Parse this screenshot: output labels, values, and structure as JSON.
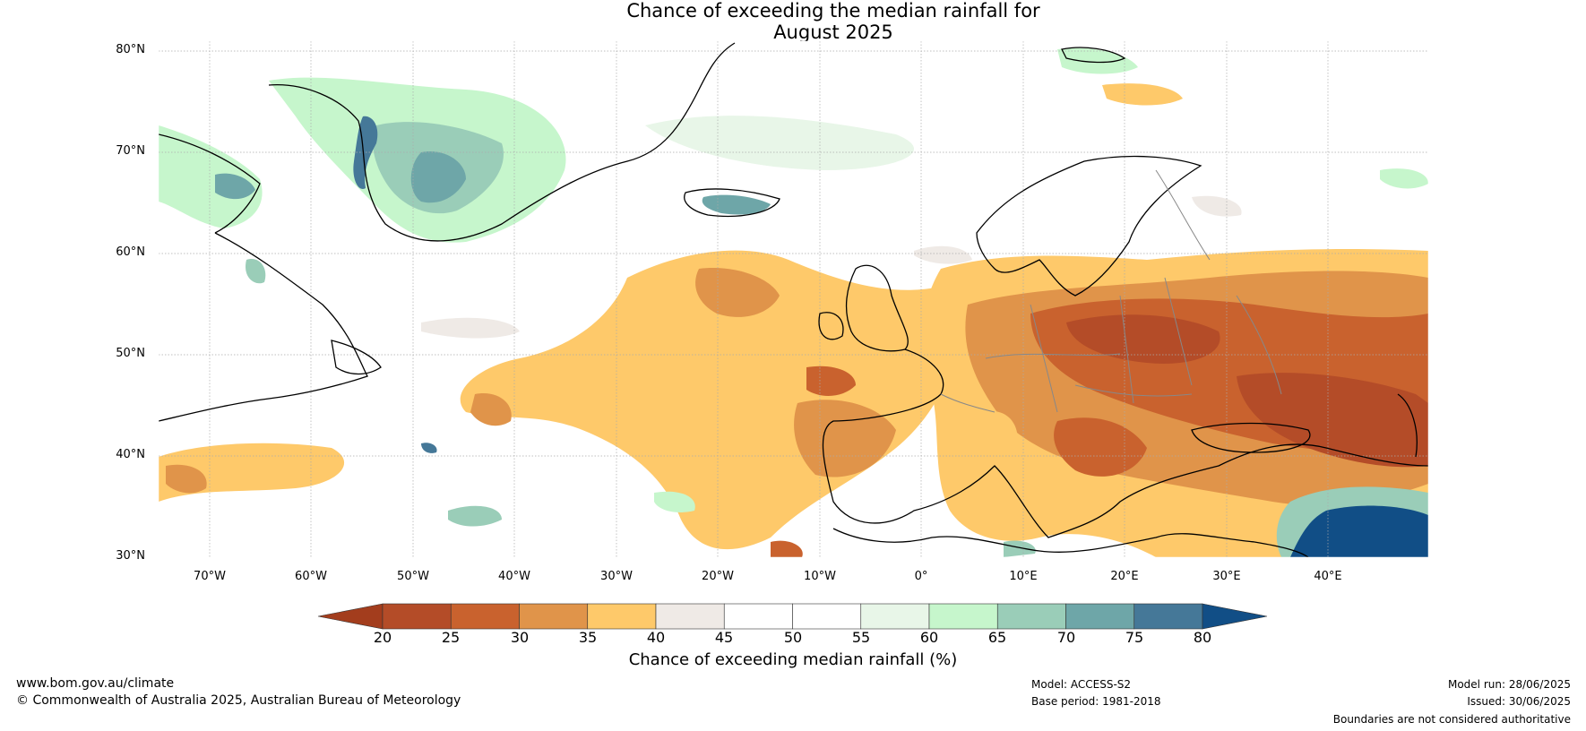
{
  "title": {
    "line1": "Chance of exceeding the median rainfall for",
    "line2": "August 2025"
  },
  "map": {
    "lat_labels": [
      "80°N",
      "70°N",
      "60°N",
      "50°N",
      "40°N",
      "30°N"
    ],
    "lon_labels": [
      "70°W",
      "60°W",
      "50°W",
      "40°W",
      "30°W",
      "20°W",
      "10°W",
      "0°",
      "10°E",
      "20°E",
      "30°E",
      "40°E"
    ],
    "extent": {
      "lon_min": -75,
      "lon_max": 50,
      "lat_min": 30,
      "lat_max": 81
    },
    "gridlines": true,
    "colors": {
      "very_dry": "#a33d1d",
      "dry_2": "#b44c28",
      "dry_3": "#c9622e",
      "dry_4": "#e0944a",
      "dry_5": "#fec96a",
      "neutral_low": "#efeae6",
      "neutral": "#ffffff",
      "wet_1": "#e8f6e8",
      "wet_2": "#c6f6cc",
      "wet_3": "#9acdb8",
      "wet_4": "#6ea6a8",
      "wet_5": "#457898",
      "very_wet": "#114e86"
    }
  },
  "colorbar": {
    "ticks": [
      "20",
      "25",
      "30",
      "35",
      "40",
      "45",
      "50",
      "55",
      "60",
      "65",
      "70",
      "75",
      "80"
    ],
    "colors": [
      "#b44c28",
      "#c9622e",
      "#e0944a",
      "#fec96a",
      "#efeae6",
      "#ffffff",
      "#ffffff",
      "#e8f6e8",
      "#c6f6cc",
      "#9acdb8",
      "#6ea6a8",
      "#457898"
    ],
    "under_color": "#a33d1d",
    "over_color": "#114e86",
    "label": "Chance of exceeding median rainfall (%)"
  },
  "footer": {
    "website": "www.bom.gov.au/climate",
    "copyright": "© Commonwealth of Australia 2025, Australian Bureau of Meteorology",
    "model": "Model: ACCESS-S2",
    "base_period": "Base period: 1981-2018",
    "model_run": "Model run: 28/06/2025",
    "issued": "Issued: 30/06/2025",
    "disclaimer": "Boundaries are not considered authoritative"
  }
}
